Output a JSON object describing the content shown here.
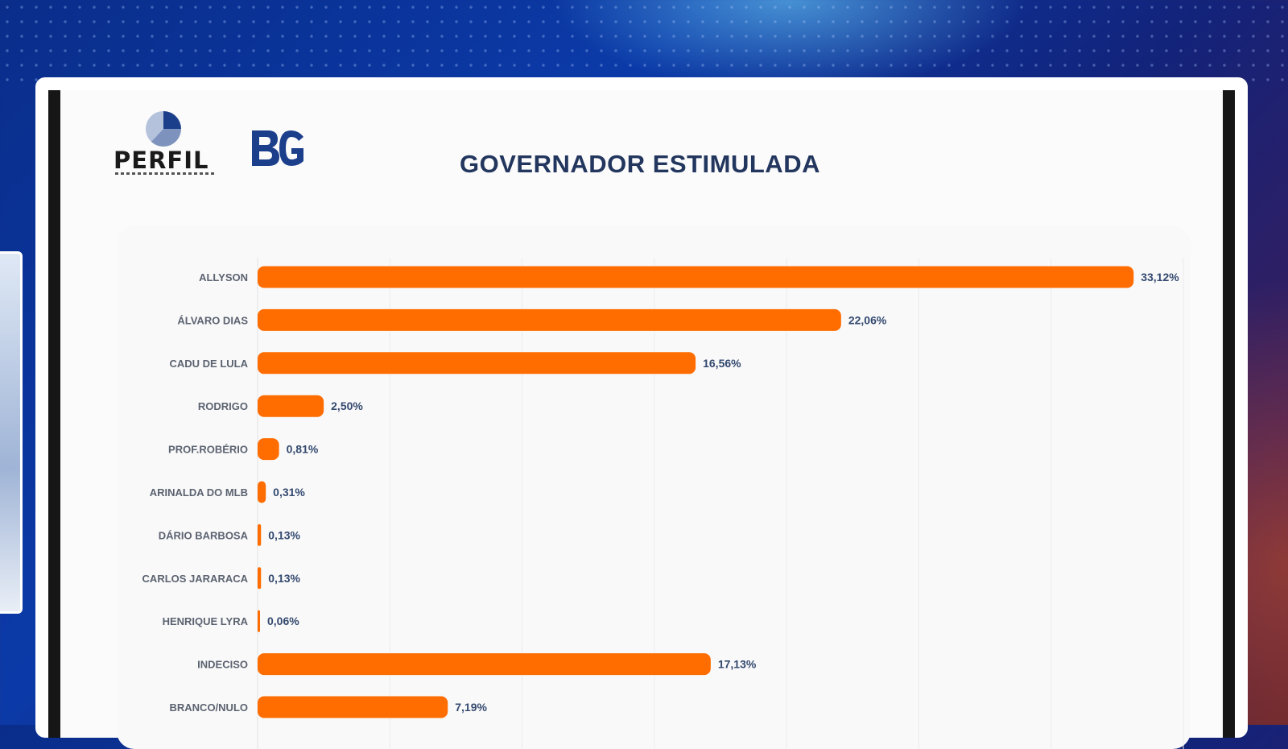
{
  "title": "GOVERNADOR ESTIMULADA",
  "logos": {
    "perfil": "PERFIL",
    "bg": "BG"
  },
  "colors": {
    "bar": "#ff6c00",
    "label": "#5b6270",
    "value": "#33496f",
    "title": "#22365e"
  },
  "chart_data": {
    "type": "bar",
    "orientation": "horizontal",
    "categories": [
      "ALLYSON",
      "ÁLVARO DIAS",
      "CADU DE LULA",
      "RODRIGO",
      "PROF.ROBÉRIO",
      "ARINALDA DO MLB",
      "DÁRIO BARBOSA",
      "CARLOS JARARACA",
      "HENRIQUE LYRA",
      "INDECISO",
      "BRANCO/NULO"
    ],
    "values": [
      33.12,
      22.06,
      16.56,
      2.5,
      0.81,
      0.31,
      0.13,
      0.13,
      0.06,
      17.13,
      7.19
    ],
    "value_labels": [
      "33,12%",
      "22,06%",
      "16,56%",
      "2,50%",
      "0,81%",
      "0,31%",
      "0,13%",
      "0,13%",
      "0,06%",
      "17,13%",
      "7,19%"
    ],
    "xlim": [
      0,
      35
    ],
    "grid": true,
    "legend": "none"
  }
}
